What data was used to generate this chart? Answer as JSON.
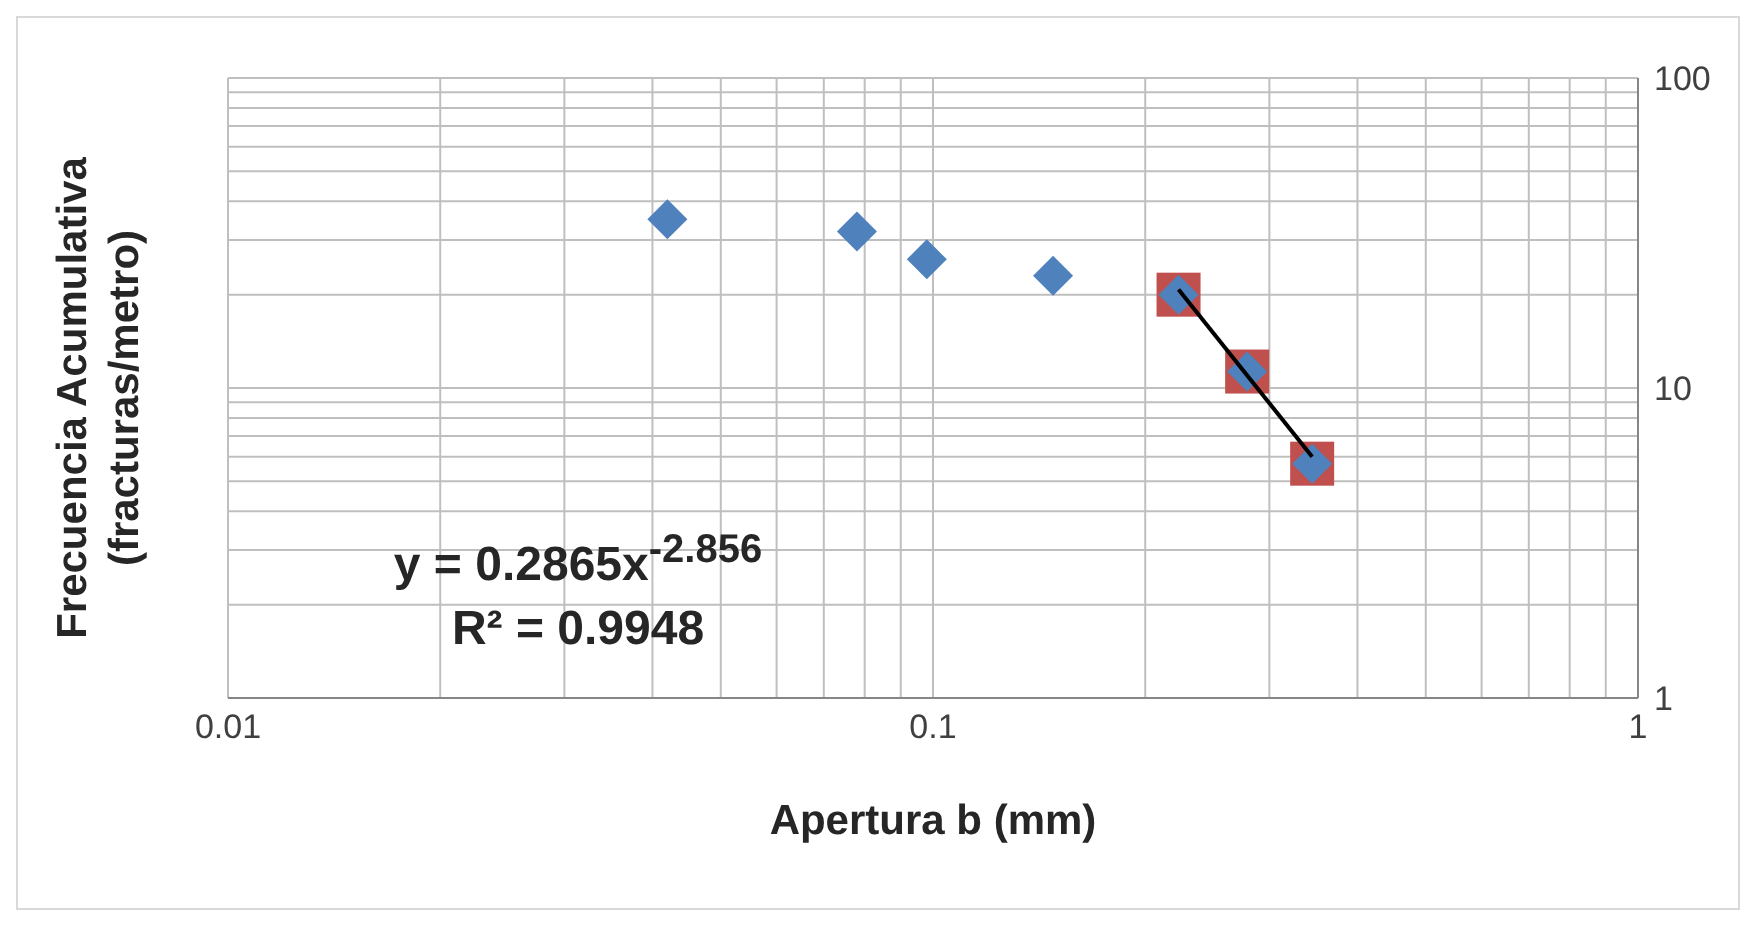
{
  "chart_data": {
    "type": "scatter",
    "xlabel": "Apertura b (mm)",
    "ylabel": "Frecuencia Acumulativa (fracturas/metro)",
    "log": "xy",
    "grid": true,
    "xlim": [
      0.01,
      1
    ],
    "xticks": [
      0.01,
      {
        "value": 0.02,
        "label": null
      },
      {
        "value": 0.03,
        "label": null
      },
      {
        "value": 0.04,
        "label": null
      },
      {
        "value": 0.05,
        "label": null
      },
      {
        "value": 0.06,
        "label": null
      },
      {
        "value": 0.07,
        "label": null
      },
      {
        "value": 0.08,
        "label": null
      },
      {
        "value": 0.09,
        "label": null
      },
      0.1,
      {
        "value": 0.2,
        "label": null
      },
      {
        "value": 0.3,
        "label": null
      },
      {
        "value": 0.4,
        "label": null
      },
      {
        "value": 0.5,
        "label": null
      },
      {
        "value": 0.6,
        "label": null
      },
      {
        "value": 0.7,
        "label": null
      },
      {
        "value": 0.8,
        "label": null
      },
      {
        "value": 0.9,
        "label": null
      },
      1
    ],
    "ylim": [
      1,
      100
    ],
    "yticks": [
      1,
      {
        "value": 2,
        "label": null
      },
      {
        "value": 3,
        "label": null
      },
      {
        "value": 4,
        "label": null
      },
      {
        "value": 5,
        "label": null
      },
      {
        "value": 6,
        "label": null
      },
      {
        "value": 7,
        "label": null
      },
      {
        "value": 8,
        "label": null
      },
      {
        "value": 9,
        "label": null
      },
      10,
      {
        "value": 20,
        "label": null
      },
      {
        "value": 30,
        "label": null
      },
      {
        "value": 40,
        "label": null
      },
      {
        "value": 50,
        "label": null
      },
      {
        "value": 60,
        "label": null
      },
      {
        "value": 70,
        "label": null
      },
      {
        "value": 80,
        "label": null
      },
      {
        "value": 90,
        "label": null
      },
      100
    ],
    "series": [
      {
        "marker": "square",
        "color": "#c0504d",
        "x": [
          0.223,
          0.279,
          0.345
        ],
        "values": [
          20,
          11.3,
          5.7
        ]
      },
      {
        "marker": "diamond",
        "color": "#4f81bd",
        "x": [
          0.042,
          0.078,
          0.098,
          0.148,
          0.223,
          0.279,
          0.345
        ],
        "values": [
          35,
          32,
          26,
          23,
          20,
          11.3,
          5.7
        ]
      },
      {
        "type": "line",
        "marker": "none",
        "color": "#000000",
        "x": [
          0.223,
          0.345
        ],
        "values": [
          20.8,
          6.0
        ]
      }
    ],
    "annotations": [
      "y = 0.2865x$^{-2.856}$",
      "R² = 0.9948"
    ]
  }
}
